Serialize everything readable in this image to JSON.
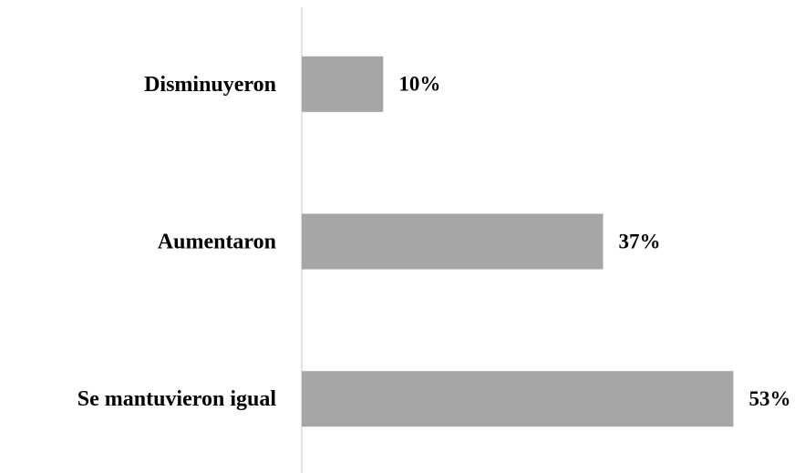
{
  "chart_data": {
    "type": "barh",
    "categories": [
      "Disminuyeron",
      "Aumentaron",
      "Se mantuvieron igual"
    ],
    "values": [
      10,
      37,
      53
    ],
    "value_labels": [
      "10%",
      "37%",
      "53%"
    ],
    "color": "#a6a6a6",
    "xlim": [
      0,
      60
    ]
  }
}
